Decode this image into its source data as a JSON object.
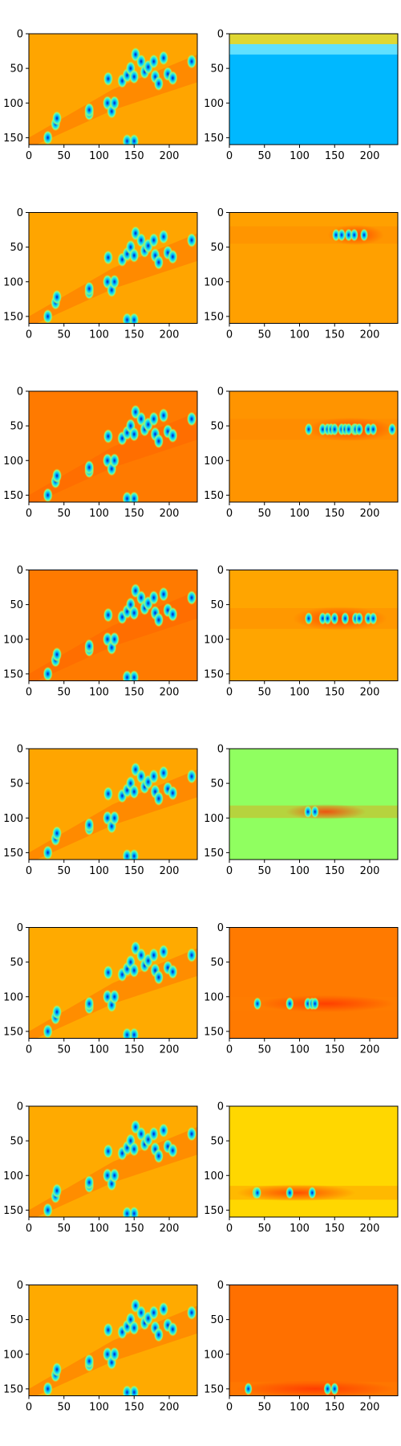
{
  "chart_data": {
    "type": "heatmap",
    "layout": {
      "rows": 8,
      "cols": 2
    },
    "x_ticks": [
      0,
      50,
      100,
      150,
      200
    ],
    "y_ticks": [
      0,
      50,
      100,
      150
    ],
    "xlim": [
      0,
      240
    ],
    "ylim": [
      160,
      0
    ],
    "colormap": "jet",
    "rows": [
      {
        "left": {
          "background": "#FFA500",
          "blobs_y_range": [
            20,
            160
          ]
        },
        "right": {
          "background": "#00B8FF",
          "highlight_y_range": [
            0,
            30
          ],
          "highlight_color": "#FFD400"
        }
      },
      {
        "left": {
          "background": "#FFA500",
          "blobs_y_range": [
            20,
            160
          ]
        },
        "right": {
          "background": "#FFA000",
          "highlight_y_range": [
            20,
            45
          ],
          "highlight_x_range": [
            140,
            220
          ],
          "highlight_color": "#FF4A00"
        }
      },
      {
        "left": {
          "background": "#FF7A00",
          "blobs_y_range": [
            20,
            160
          ]
        },
        "right": {
          "background": "#FF9400",
          "highlight_y_range": [
            40,
            70
          ],
          "highlight_x_range": [
            110,
            235
          ],
          "highlight_color": "#FF3A00"
        }
      },
      {
        "left": {
          "background": "#FF7A00",
          "blobs_y_range": [
            20,
            160
          ]
        },
        "right": {
          "background": "#FFA500",
          "highlight_y_range": [
            55,
            85
          ],
          "highlight_x_range": [
            90,
            225
          ],
          "highlight_color": "#FF3A00"
        }
      },
      {
        "left": {
          "background": "#FFA500",
          "blobs_y_range": [
            20,
            160
          ]
        },
        "right": {
          "background": "#90FF60",
          "highlight_y_range": [
            82,
            100
          ],
          "highlight_x_range": [
            80,
            195
          ],
          "highlight_color": "#FF4A00"
        }
      },
      {
        "left": {
          "background": "#FFAA00",
          "blobs_y_range": [
            20,
            160
          ]
        },
        "right": {
          "background": "#FF7A00",
          "highlight_y_range": [
            100,
            120
          ],
          "highlight_x_range": [
            40,
            235
          ],
          "highlight_color": "#FF3000"
        }
      },
      {
        "left": {
          "background": "#FFAA00",
          "blobs_y_range": [
            20,
            160
          ]
        },
        "right": {
          "background": "#FFD700",
          "highlight_y_range": [
            115,
            135
          ],
          "highlight_x_range": [
            10,
            180
          ],
          "highlight_color": "#FF5000"
        }
      },
      {
        "left": {
          "background": "#FFAA00",
          "blobs_y_range": [
            20,
            160
          ]
        },
        "right": {
          "background": "#FF7000",
          "highlight_y_range": [
            140,
            160
          ],
          "highlight_x_range": [
            10,
            235
          ],
          "highlight_color": "#FF3000"
        }
      }
    ],
    "blob_points": [
      [
        27,
        150
      ],
      [
        38,
        130
      ],
      [
        40,
        122
      ],
      [
        86,
        115
      ],
      [
        86,
        110
      ],
      [
        112,
        100
      ],
      [
        113,
        65
      ],
      [
        118,
        112
      ],
      [
        122,
        100
      ],
      [
        133,
        68
      ],
      [
        140,
        60
      ],
      [
        145,
        50
      ],
      [
        150,
        62
      ],
      [
        152,
        30
      ],
      [
        160,
        40
      ],
      [
        165,
        55
      ],
      [
        170,
        48
      ],
      [
        178,
        40
      ],
      [
        180,
        62
      ],
      [
        185,
        72
      ],
      [
        192,
        35
      ],
      [
        198,
        58
      ],
      [
        205,
        64
      ],
      [
        232,
        40
      ],
      [
        150,
        155
      ],
      [
        140,
        155
      ]
    ]
  }
}
